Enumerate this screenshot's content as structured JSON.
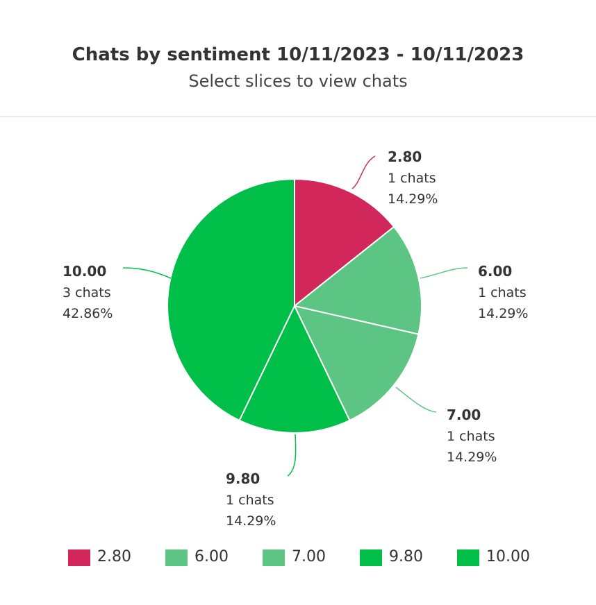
{
  "header": {
    "title": "Chats by sentiment 10/11/2023 - 10/11/2023",
    "subtitle": "Select slices to view chats"
  },
  "chart_data": {
    "type": "pie",
    "title": "Chats by sentiment 10/11/2023 - 10/11/2023",
    "subtitle": "Select slices to view chats",
    "legend_position": "bottom",
    "slices": [
      {
        "label": "2.80",
        "value": 1,
        "count_text": "1 chats",
        "percent_text": "14.29%",
        "color": "#d2275a"
      },
      {
        "label": "6.00",
        "value": 1,
        "count_text": "1 chats",
        "percent_text": "14.29%",
        "color": "#5cc583"
      },
      {
        "label": "7.00",
        "value": 1,
        "count_text": "1 chats",
        "percent_text": "14.29%",
        "color": "#5cc583"
      },
      {
        "label": "9.80",
        "value": 1,
        "count_text": "1 chats",
        "percent_text": "14.29%",
        "color": "#00bf48"
      },
      {
        "label": "10.00",
        "value": 3,
        "count_text": "3 chats",
        "percent_text": "42.86%",
        "color": "#00bf48"
      }
    ]
  }
}
